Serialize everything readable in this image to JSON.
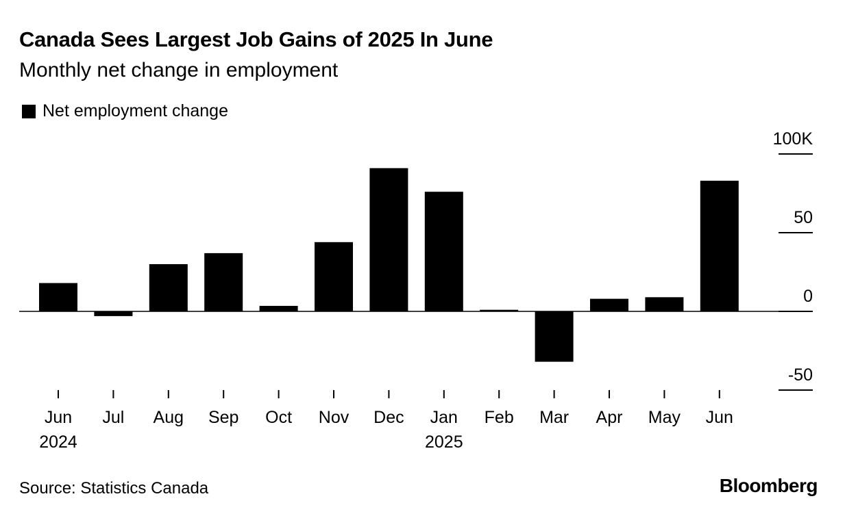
{
  "header": {
    "title": "Canada Sees Largest Job Gains of 2025 In June",
    "subtitle": "Monthly net change in employment"
  },
  "legend": {
    "label": "Net employment change"
  },
  "footer": {
    "source": "Source: Statistics Canada",
    "brand": "Bloomberg"
  },
  "chart_data": {
    "type": "bar",
    "title": "Canada Sees Largest Job Gains of 2025 In June",
    "subtitle": "Monthly net change in employment",
    "categories": [
      "Jun",
      "Jul",
      "Aug",
      "Sep",
      "Oct",
      "Nov",
      "Dec",
      "Jan",
      "Feb",
      "Mar",
      "Apr",
      "May",
      "Jun"
    ],
    "year_labels": [
      "2024",
      "",
      "",
      "",
      "",
      "",
      "",
      "2025",
      "",
      "",
      "",
      "",
      ""
    ],
    "series": [
      {
        "name": "Net employment change",
        "values": [
          18,
          -3,
          30,
          37,
          3.5,
          44,
          91,
          76,
          1,
          -32,
          8,
          9,
          83
        ]
      }
    ],
    "ylim": [
      -50,
      100
    ],
    "y_ticks": [
      100,
      50,
      0,
      -50
    ],
    "y_tick_labels": [
      "100K",
      "50",
      "0",
      "-50"
    ],
    "y_axis_position": "right",
    "grid": false,
    "legend_position": "top-left",
    "bar_color": "#000000"
  }
}
